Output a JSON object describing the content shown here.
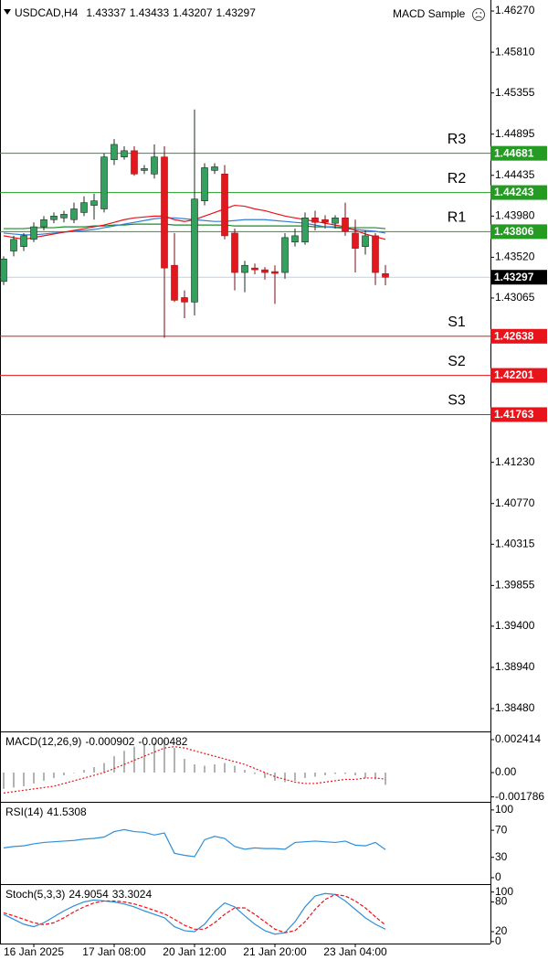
{
  "chart_data": [
    {
      "type": "candlestick",
      "symbol": "USDCAD,H4",
      "indicator": "MACD Sample",
      "categories": [
        null,
        null,
        null,
        "16 Jan 2025",
        null,
        null,
        null,
        null,
        null,
        null,
        null,
        "17 Jan 08:00",
        null,
        null,
        null,
        null,
        null,
        null,
        null,
        "20 Jan 12:00",
        null,
        null,
        null,
        null,
        null,
        null,
        null,
        "21 Jan 20:00",
        null,
        null,
        null,
        null,
        null,
        null,
        null,
        "23 Jan 04:00",
        null,
        null,
        null
      ],
      "open": [
        1.4325,
        1.4359,
        1.4364,
        1.4372,
        1.4386,
        1.4394,
        1.4396,
        1.4394,
        1.4402,
        1.441,
        1.4406,
        1.4461,
        1.4464,
        1.4471,
        1.4449,
        1.4445,
        1.4464,
        1.4343,
        1.4307,
        1.4302,
        1.4415,
        1.4449,
        1.4445,
        1.4379,
        1.4335,
        1.434,
        1.4338,
        1.4336,
        1.4335,
        1.4369,
        1.4369,
        1.4396,
        1.4394,
        1.439,
        1.4396,
        1.4379,
        1.4364,
        1.4376,
        1.43337
      ],
      "high": [
        1.4353,
        1.4376,
        1.4379,
        1.4391,
        1.4398,
        1.4402,
        1.4404,
        1.4413,
        1.442,
        1.4423,
        1.4468,
        1.4484,
        1.4476,
        1.4476,
        1.4455,
        1.4478,
        1.4476,
        1.4379,
        1.4315,
        1.4517,
        1.4457,
        1.4457,
        1.4455,
        1.4384,
        1.4348,
        1.4345,
        1.4341,
        1.4343,
        1.4379,
        1.4384,
        1.4402,
        1.4404,
        1.4399,
        1.4399,
        1.4413,
        1.4394,
        1.4382,
        1.4379,
        1.43433
      ],
      "low": [
        1.4321,
        1.4353,
        1.4359,
        1.4369,
        1.4382,
        1.439,
        1.4391,
        1.439,
        1.4398,
        1.4394,
        1.4402,
        1.4455,
        1.4461,
        1.4443,
        1.4445,
        1.444,
        1.4262,
        1.4302,
        1.4284,
        1.4287,
        1.441,
        1.4445,
        1.4372,
        1.4315,
        1.4313,
        1.4333,
        1.4327,
        1.43,
        1.4328,
        1.4364,
        1.4366,
        1.4382,
        1.4384,
        1.4384,
        1.4376,
        1.4335,
        1.4355,
        1.4321,
        1.43207
      ],
      "close": [
        1.435,
        1.4372,
        1.4376,
        1.4386,
        1.4394,
        1.4398,
        1.44,
        1.4406,
        1.4413,
        1.4415,
        1.4464,
        1.4478,
        1.4471,
        1.4445,
        1.4451,
        1.4464,
        1.434,
        1.4304,
        1.4302,
        1.4417,
        1.4452,
        1.4453,
        1.4376,
        1.4335,
        1.4343,
        1.4338,
        1.4335,
        1.4334,
        1.4374,
        1.4376,
        1.4396,
        1.4391,
        1.4391,
        1.4396,
        1.4381,
        1.4362,
        1.4376,
        1.4335,
        1.43297
      ],
      "up_color": "#34a05e",
      "down_color": "#e3171e",
      "last_price_color": "#b9d3ee",
      "series": [
        {
          "color": "#1b8a2a",
          "style": "solid",
          "values": [
            1.4384,
            1.4384,
            1.4384,
            1.4385,
            1.4385,
            1.4385,
            1.4386,
            1.4386,
            1.4386,
            1.4387,
            1.4387,
            1.4388,
            1.4388,
            1.4389,
            1.4389,
            1.4389,
            1.4389,
            1.4388,
            1.4388,
            1.4388,
            1.4388,
            1.4388,
            1.4388,
            1.4387,
            1.4387,
            1.4387,
            1.4387,
            1.4387,
            1.4387,
            1.4387,
            1.4387,
            1.4386,
            1.4386,
            1.4386,
            1.4385,
            1.4385,
            1.4385,
            1.4385,
            1.4384
          ]
        },
        {
          "color": "#2f7fd8",
          "style": "solid",
          "values": [
            1.4379,
            1.4378,
            1.4377,
            1.4377,
            1.4378,
            1.4379,
            1.438,
            1.4381,
            1.4382,
            1.4383,
            1.4385,
            1.4387,
            1.4389,
            1.4391,
            1.4393,
            1.4395,
            1.4396,
            1.4396,
            1.4395,
            1.4394,
            1.4393,
            1.4392,
            1.4392,
            1.4393,
            1.4394,
            1.4394,
            1.4394,
            1.4393,
            1.4392,
            1.4391,
            1.439,
            1.4388,
            1.4386,
            1.4385,
            1.4384,
            1.4383,
            1.4382,
            1.4381,
            1.4379
          ]
        },
        {
          "color": "#e8141b",
          "style": "solid",
          "values": [
            1.4376,
            1.4374,
            1.4372,
            1.4374,
            1.4376,
            1.4378,
            1.438,
            1.4382,
            1.4384,
            1.4386,
            1.4388,
            1.4391,
            1.4394,
            1.4396,
            1.4397,
            1.4398,
            1.4398,
            1.4394,
            1.4392,
            1.4394,
            1.4398,
            1.4402,
            1.4406,
            1.441,
            1.4409,
            1.4406,
            1.4404,
            1.4401,
            1.4398,
            1.4396,
            1.4394,
            1.4392,
            1.439,
            1.4388,
            1.4386,
            1.4382,
            1.4378,
            1.4375,
            1.4372
          ]
        }
      ],
      "levels": [
        {
          "name": "R3",
          "value": 1.44681,
          "color": "#259b24"
        },
        {
          "name": "R2",
          "value": 1.44243,
          "color": "#259b24"
        },
        {
          "name": "R1",
          "value": 1.43806,
          "color": "#259b24"
        },
        {
          "name": "S1",
          "value": 1.42638,
          "color": "#e8141b"
        },
        {
          "name": "S2",
          "value": 1.42201,
          "color": "#e8141b"
        },
        {
          "name": "S3",
          "value": 1.41763,
          "color": "#e8141b"
        }
      ],
      "ylim": [
        1.38225,
        1.46393
      ],
      "yticks": [
        {
          "value": 1.4627,
          "label": "1.46270"
        },
        {
          "value": 1.4581,
          "label": "1.45810"
        },
        1.45355,
        1.44895,
        1.44435,
        {
          "value": 1.4398,
          "label": "1.43980"
        },
        {
          "value": 1.4352,
          "label": "1.43520"
        },
        1.43065,
        {
          "value": 1.4123,
          "label": "1.41230"
        },
        {
          "value": 1.4077,
          "label": "1.40770"
        },
        1.40315,
        1.39855,
        {
          "value": 1.394,
          "label": "1.39400"
        },
        {
          "value": 1.3894,
          "label": "1.38940"
        },
        {
          "value": 1.3848,
          "label": "1.38480"
        }
      ]
    },
    {
      "type": "macd",
      "title": "MACD(12,26,9)",
      "series": [
        {
          "color": "#9a9a9a",
          "style": "bar",
          "values": [
            -0.0012,
            -0.0011,
            -0.001,
            -0.0008,
            -0.0006,
            -0.0004,
            -0.0002,
            0,
            0.0002,
            0.0004,
            0.0007,
            0.0012,
            0.0016,
            0.0019,
            0.0021,
            0.0022,
            0.0024,
            0.0018,
            0.001,
            0.0006,
            0.0005,
            0.0006,
            0.0007,
            0.0005,
            0.0002,
            -0.0001,
            -0.0004,
            -0.0006,
            -0.0007,
            -0.0006,
            -0.0004,
            -0.0003,
            -0.0002,
            -0.0001,
            -0.0001,
            -0.0002,
            -0.0004,
            -0.0005,
            -0.000902
          ]
        },
        {
          "color": "#e8141b",
          "style": "dotted",
          "values": [
            -0.0015,
            -0.0014,
            -0.0013,
            -0.0012,
            -0.0011,
            -0.001,
            -0.0008,
            -0.0006,
            -0.0004,
            -0.0002,
            0,
            0.0003,
            0.0006,
            0.0009,
            0.0012,
            0.0015,
            0.0018,
            0.0019,
            0.0018,
            0.0016,
            0.0014,
            0.0012,
            0.001,
            0.0008,
            0.0006,
            0.0003,
            0,
            -0.0003,
            -0.0005,
            -0.0007,
            -0.0008,
            -0.0008,
            -0.0007,
            -0.0006,
            -0.0005,
            -0.0005,
            -0.0004,
            -0.0004,
            -0.000482
          ]
        }
      ],
      "ylim": [
        -0.002146,
        0.003017
      ],
      "yticks": [
        0.002414,
        {
          "value": 0,
          "label": "0.00"
        },
        -0.001786
      ]
    },
    {
      "type": "line",
      "title": "RSI(14)",
      "series": [
        {
          "color": "#2f8fd8",
          "style": "solid",
          "values": [
            44,
            46,
            47,
            50,
            52,
            53,
            54,
            55,
            57,
            58,
            60,
            68,
            71,
            68,
            67,
            63,
            66,
            36,
            33,
            31,
            56,
            61,
            58,
            46,
            42,
            44,
            43,
            43,
            42,
            52,
            53,
            54,
            53,
            52,
            54,
            48,
            47,
            52,
            41.5308
          ]
        }
      ],
      "ylim": [
        -9.5,
        112
      ],
      "yticks": [
        100,
        70,
        30,
        0
      ]
    },
    {
      "type": "line",
      "title": "Stoch(5,3,3)",
      "series": [
        {
          "color": "#2f8fd8",
          "style": "solid",
          "values": [
            55,
            45,
            35,
            30,
            38,
            50,
            62,
            72,
            80,
            84,
            82,
            80,
            76,
            70,
            62,
            55,
            48,
            30,
            22,
            20,
            35,
            60,
            78,
            70,
            52,
            35,
            22,
            15,
            18,
            40,
            70,
            92,
            97,
            95,
            82,
            65,
            48,
            35,
            24.9054
          ]
        },
        {
          "color": "#e8141b",
          "style": "dashed",
          "values": [
            58,
            52,
            45,
            38,
            34,
            38,
            48,
            60,
            70,
            78,
            82,
            82,
            80,
            76,
            70,
            63,
            56,
            45,
            33,
            25,
            25,
            38,
            55,
            68,
            68,
            55,
            40,
            25,
            18,
            22,
            40,
            65,
            85,
            95,
            92,
            82,
            68,
            50,
            33.3024
          ]
        }
      ],
      "ylim": [
        -4,
        116
      ],
      "yticks": [
        100,
        80,
        20,
        0
      ]
    }
  ]
}
